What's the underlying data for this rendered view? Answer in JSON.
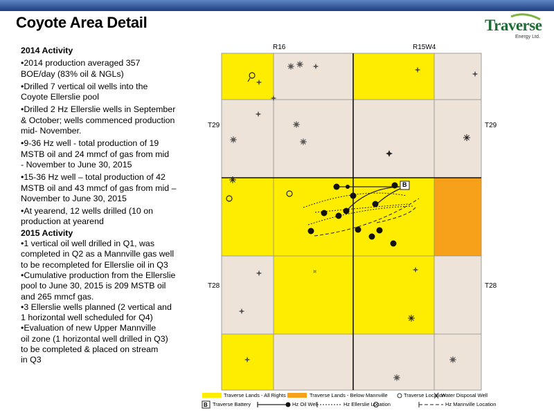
{
  "header": {
    "title": "Coyote Area Detail",
    "accent_color": "#2b4f8f"
  },
  "logo": {
    "name": "Traverse",
    "subtitle": "Energy Ltd.",
    "color": "#1e6b34"
  },
  "activity_2014": {
    "heading": "2014 Activity",
    "items": [
      "•2014 production averaged 357\nBOE/day (83% oil & NGLs)",
      "•Drilled 7 vertical oil wells into the\nCoyote Ellerslie pool",
      "•Drilled 2 Hz Ellerslie wells in September\n& October; wells commenced production\nmid- November.",
      "•9-36 Hz well - total production of 19\nMSTB oil and 24 mmcf of gas from  mid\n- November to June 30, 2015",
      "•15-36 Hz well – total production of 42\nMSTB oil and 43 mmcf of gas from mid –\nNovember to June 30, 2015",
      "•At yearend, 12 wells drilled (10 on\nproduction at yearend"
    ]
  },
  "activity_2015": {
    "heading": "2015 Activity",
    "items": [
      "•1 vertical oil well drilled in Q1, was\ncompleted in Q2 as a Mannville gas well\n  to be recompleted for Ellerslie oil in Q3",
      "•Cumulative production from the Ellerslie\npool to June 30, 2015 is 209 MSTB oil\nand 265 mmcf gas.",
      "•3 Ellerslie wells planned (2 vertical and\n  1 horizontal well scheduled for Q4)",
      "•Evaluation of new Upper Mannville\n   oil zone (1 horizontal well drilled in Q3)\n   to be completed & placed on stream\n   in Q3"
    ]
  },
  "map": {
    "range_labels": [
      "R16",
      "R15W4"
    ],
    "township_labels": [
      "T29",
      "T29",
      "T28",
      "T28"
    ],
    "battery_label": "B",
    "colors": {
      "all_rights": "#ffed00",
      "below_mannville": "#f7a11a",
      "other_land": "#eee3d9",
      "grid_line": "#8a8a8a"
    }
  },
  "legend": {
    "items": [
      {
        "label": "Traverse Lands - All Rights",
        "symbol": "yellow-swatch"
      },
      {
        "label": "Traverse Lands - Below Mannville",
        "symbol": "orange-swatch"
      },
      {
        "label": "Water Disposal Well",
        "symbol": "water-disposal-icon"
      },
      {
        "label": "Traverse Battery",
        "symbol": "battery-icon"
      },
      {
        "label": "Hz Oil Well",
        "symbol": "hz-oil-well-icon"
      },
      {
        "label": "Hz Ellerslie Location",
        "symbol": "hz-ellerslie-icon"
      },
      {
        "label": "Traverse Location",
        "symbol": "location-circle-icon"
      },
      {
        "label": "Hz Mannville Location",
        "symbol": "hz-mannville-icon"
      }
    ]
  }
}
